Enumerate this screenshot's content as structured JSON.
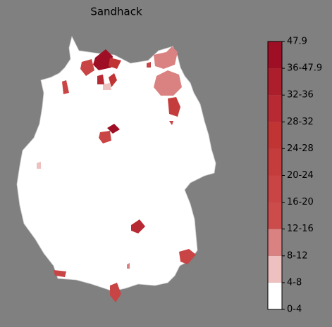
{
  "title": "Sandhack",
  "colorbar": {
    "labels": [
      "0-4",
      "4-8",
      "8-12",
      "12-16",
      "16-20",
      "20-24",
      "24-28",
      "28-32",
      "32-36",
      "36-47.9",
      "47.9"
    ],
    "colors": [
      "#ffffff",
      "#efc0c0",
      "#da8282",
      "#cc4c4c",
      "#c94444",
      "#c53c3c",
      "#c13434",
      "#b82a33",
      "#ad1e2c",
      "#9e0e24"
    ]
  }
}
